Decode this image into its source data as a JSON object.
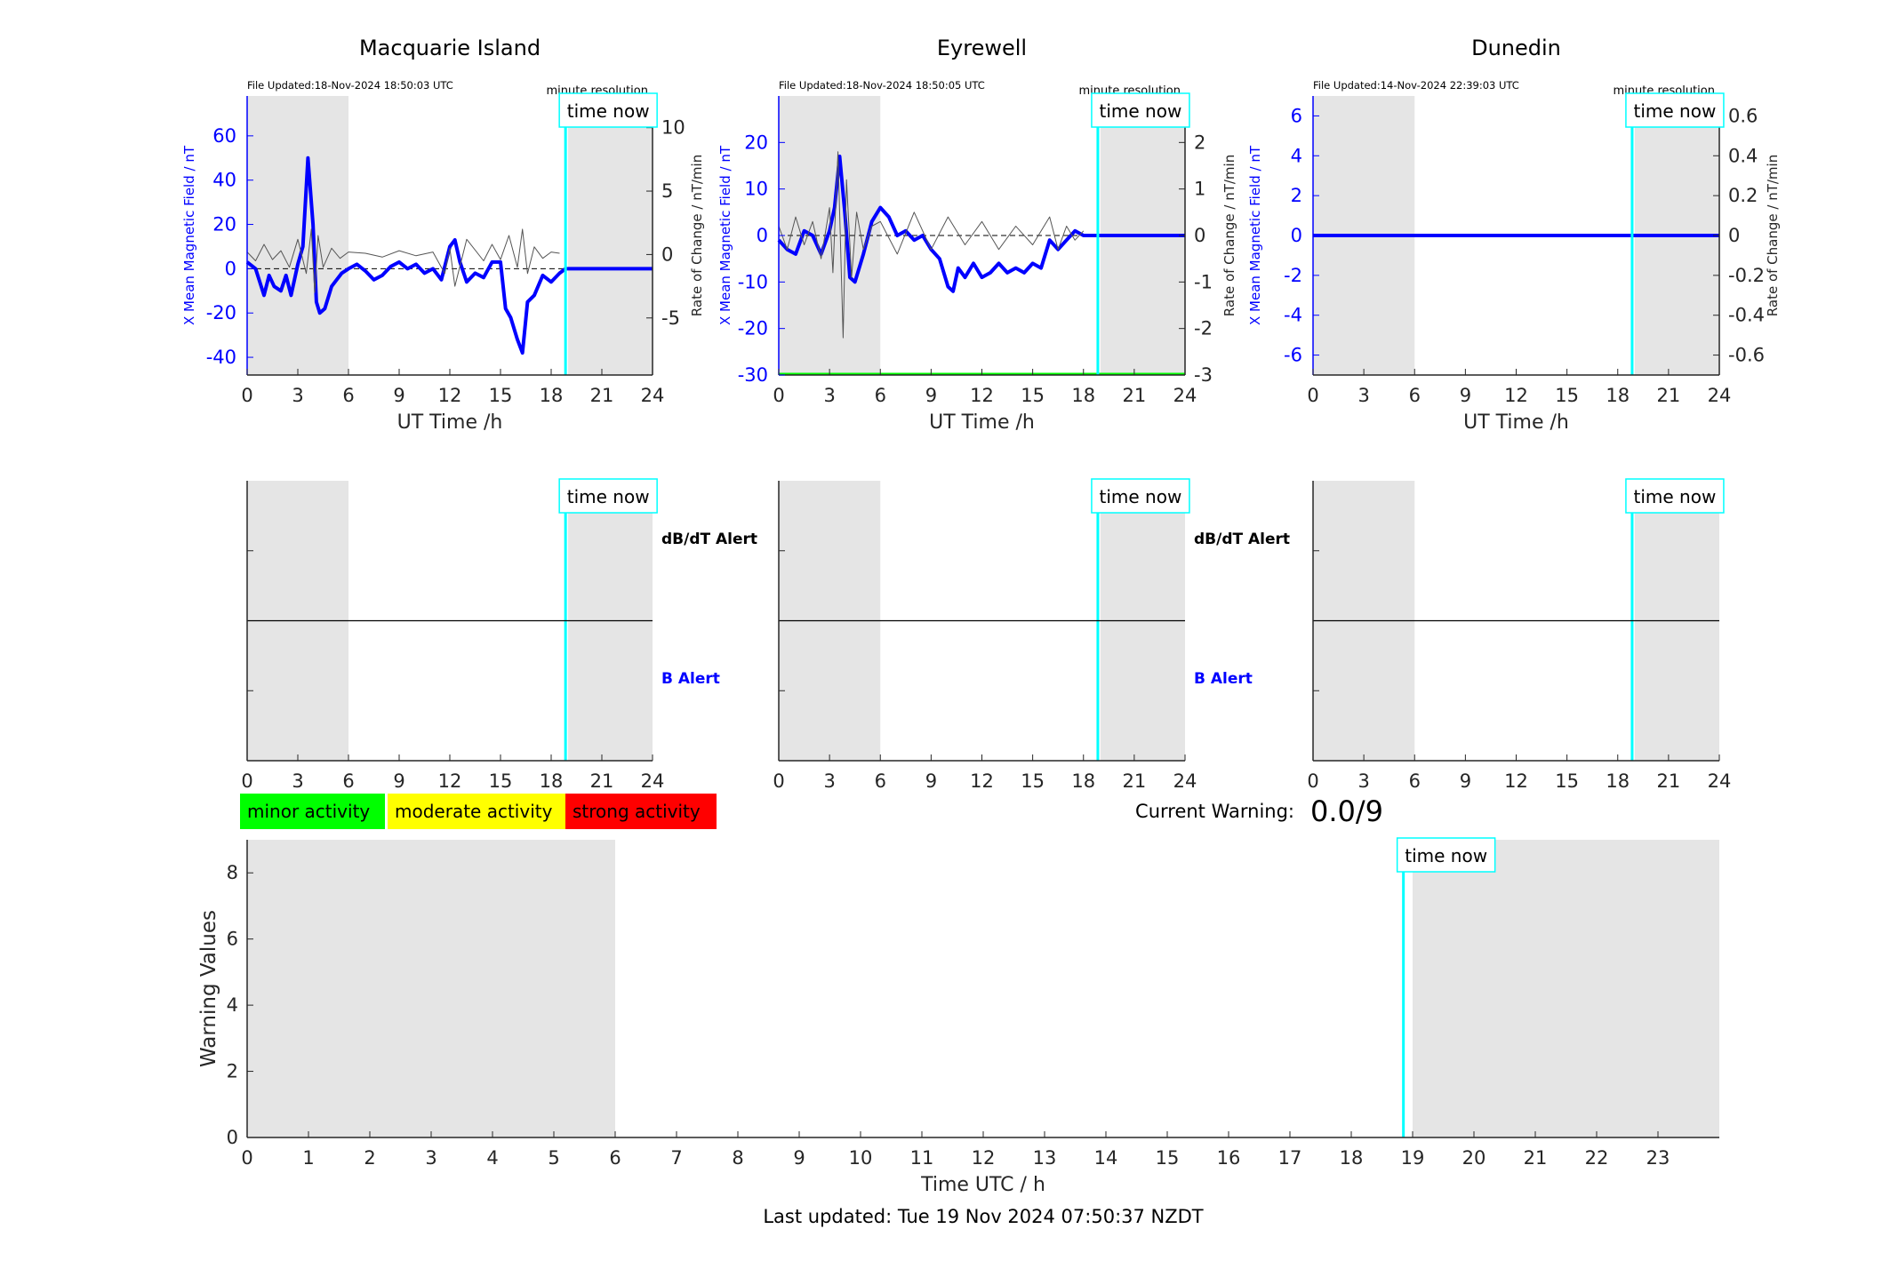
{
  "colors": {
    "x_series": "#0000ff",
    "rate_series": "#555555",
    "time_now": "#00ffff",
    "night_shade": "#e5e5e5",
    "minor": "#00ff00",
    "moderate": "#ffff00",
    "strong": "#ff0000",
    "axis": "#262626"
  },
  "common": {
    "time_now_label": "time now",
    "resolution_label": "minute resolution",
    "xlabel_top": "UT Time /h",
    "y_left_label": "X Mean Magnetic Field / nT",
    "y_right_label": "Rate of Change / nT/min",
    "dbdt_alert_label": "dB/dT Alert",
    "b_alert_label": "B Alert",
    "x_ticks": [
      0,
      3,
      6,
      9,
      12,
      15,
      18,
      21,
      24
    ],
    "time_now_h": 18.85,
    "night_start_h": 0,
    "night_end_h": 6,
    "day_shade_start_h": 19,
    "day_shade_end_h": 24
  },
  "legend": {
    "minor": "minor activity",
    "moderate": "moderate activity",
    "strong": "strong activity"
  },
  "warning": {
    "label": "Current Warning:",
    "value": "0.0/9"
  },
  "footer": {
    "last_updated": "Last updated: Tue 19 Nov 2024 07:50:37 NZDT"
  },
  "chart_data": [
    {
      "type": "line",
      "title": "Macquarie Island",
      "file_updated": "File Updated:18-Nov-2024 18:50:03 UTC",
      "xlim": [
        0,
        24
      ],
      "ylim_left": [
        -48,
        78
      ],
      "y_left_ticks": [
        -40,
        -20,
        0,
        20,
        40,
        60
      ],
      "ylim_right": [
        -9.5,
        12.5
      ],
      "y_right_ticks": [
        -5,
        0,
        5,
        10
      ],
      "right_tick_labels": [
        "-5",
        "0",
        "5",
        "10"
      ],
      "series": [
        {
          "name": "X Mean Magnetic Field / nT",
          "axis": "left",
          "x": [
            0,
            0.5,
            1,
            1.3,
            1.6,
            2,
            2.3,
            2.6,
            3,
            3.3,
            3.6,
            3.9,
            4.1,
            4.3,
            4.6,
            5,
            5.3,
            5.6,
            6,
            6.5,
            7,
            7.5,
            8,
            8.5,
            9,
            9.5,
            10,
            10.5,
            11,
            11.5,
            12,
            12.3,
            12.6,
            13,
            13.5,
            14,
            14.5,
            15,
            15.3,
            15.6,
            16,
            16.3,
            16.6,
            17,
            17.5,
            18,
            18.5,
            18.85,
            20,
            22,
            24
          ],
          "y": [
            3,
            0,
            -12,
            -3,
            -8,
            -10,
            -3,
            -12,
            2,
            10,
            50,
            20,
            -15,
            -20,
            -18,
            -8,
            -5,
            -2,
            0,
            2,
            -1,
            -5,
            -3,
            1,
            3,
            0,
            2,
            -2,
            0,
            -5,
            10,
            13,
            3,
            -6,
            -2,
            -4,
            3,
            3,
            -18,
            -22,
            -32,
            -38,
            -15,
            -12,
            -3,
            -6,
            -2,
            0,
            0,
            0,
            0
          ]
        },
        {
          "name": "Rate of Change / nT/min",
          "axis": "right",
          "x": [
            0,
            0.5,
            1,
            1.5,
            2,
            2.5,
            3,
            3.5,
            3.8,
            4,
            4.2,
            4.5,
            5,
            5.5,
            6,
            7,
            8,
            9,
            10,
            11,
            11.7,
            12,
            12.3,
            13,
            14,
            14.5,
            15,
            15.5,
            16,
            16.3,
            16.6,
            17,
            17.5,
            18,
            18.5
          ],
          "y": [
            0.2,
            -0.5,
            0.8,
            -0.4,
            0.3,
            -1.0,
            1.2,
            -1.5,
            2.0,
            -3.0,
            1.5,
            -1.0,
            0.5,
            -0.3,
            0.2,
            0.1,
            -0.2,
            0.3,
            -0.1,
            0.2,
            -1.5,
            0.5,
            -2.5,
            1.2,
            -0.5,
            0.8,
            -0.4,
            1.5,
            -1.0,
            2.0,
            -1.5,
            0.6,
            -0.3,
            0.2,
            0.1
          ]
        }
      ],
      "xlabel": "UT Time /h"
    },
    {
      "type": "line",
      "title": "Eyrewell",
      "file_updated": "File Updated:18-Nov-2024 18:50:05 UTC",
      "xlim": [
        0,
        24
      ],
      "ylim_left": [
        -30,
        30
      ],
      "y_left_ticks": [
        -30,
        -20,
        -10,
        0,
        10,
        20
      ],
      "ylim_right": [
        -3,
        3
      ],
      "y_right_ticks": [
        -3,
        -2,
        -1,
        0,
        1,
        2
      ],
      "right_tick_labels": [
        "-3",
        "-2",
        "-1",
        "0",
        "1",
        "2"
      ],
      "series": [
        {
          "name": "X Mean Magnetic Field / nT",
          "axis": "left",
          "x": [
            0,
            0.5,
            1,
            1.5,
            2,
            2.5,
            3,
            3.3,
            3.6,
            3.9,
            4.2,
            4.5,
            5,
            5.5,
            6,
            6.5,
            7,
            7.5,
            8,
            8.5,
            9,
            9.5,
            10,
            10.3,
            10.6,
            11,
            11.5,
            12,
            12.5,
            13,
            13.5,
            14,
            14.5,
            15,
            15.5,
            16,
            16.5,
            17,
            17.5,
            18,
            18.85,
            20,
            22,
            24
          ],
          "y": [
            -1,
            -3,
            -4,
            1,
            0,
            -4,
            1,
            6,
            17,
            5,
            -9,
            -10,
            -4,
            3,
            6,
            4,
            0,
            1,
            -1,
            0,
            -3,
            -5,
            -11,
            -12,
            -7,
            -9,
            -6,
            -9,
            -8,
            -6,
            -8,
            -7,
            -8,
            -6,
            -7,
            -1,
            -3,
            -1,
            1,
            0,
            0,
            0,
            0,
            0
          ]
        },
        {
          "name": "Rate of Change / nT/min",
          "axis": "right",
          "x": [
            0,
            0.5,
            1,
            1.5,
            2,
            2.5,
            3,
            3.2,
            3.5,
            3.8,
            4,
            4.3,
            4.6,
            5,
            5.5,
            6,
            7,
            8,
            9,
            10,
            11,
            12,
            13,
            14,
            15,
            16,
            16.5,
            17,
            17.5,
            18
          ],
          "y": [
            0.2,
            -0.3,
            0.4,
            -0.2,
            0.3,
            -0.5,
            0.6,
            -0.8,
            1.8,
            -2.2,
            1.2,
            -0.9,
            0.5,
            -0.3,
            0.2,
            0.3,
            -0.4,
            0.5,
            -0.3,
            0.4,
            -0.2,
            0.3,
            -0.3,
            0.2,
            -0.2,
            0.4,
            -0.3,
            0.2,
            -0.1,
            0.1
          ]
        }
      ],
      "xlabel": "UT Time /h"
    },
    {
      "type": "line",
      "title": "Dunedin",
      "file_updated": "File Updated:14-Nov-2024 22:39:03 UTC",
      "xlim": [
        0,
        24
      ],
      "ylim_left": [
        -7,
        7
      ],
      "y_left_ticks": [
        -6,
        -4,
        -2,
        0,
        2,
        4,
        6
      ],
      "ylim_right": [
        -0.7,
        0.7
      ],
      "y_right_ticks": [
        -0.6,
        -0.4,
        -0.2,
        0,
        0.2,
        0.4,
        0.6
      ],
      "right_tick_labels": [
        "-0.6",
        "-0.4",
        "-0.2",
        "0",
        "0.2",
        "0.4",
        "0.6"
      ],
      "series": [
        {
          "name": "X Mean Magnetic Field / nT",
          "axis": "left",
          "x": [
            0,
            24
          ],
          "y": [
            0,
            0
          ]
        }
      ],
      "xlabel": "UT Time /h"
    },
    {
      "type": "line",
      "title": "",
      "xlim": [
        0,
        24
      ],
      "x_ticks": [
        0,
        1,
        2,
        3,
        4,
        5,
        6,
        7,
        8,
        9,
        10,
        11,
        12,
        13,
        14,
        15,
        16,
        17,
        18,
        19,
        20,
        21,
        22,
        23
      ],
      "ylim": [
        0,
        9
      ],
      "y_ticks": [
        0,
        2,
        4,
        6,
        8
      ],
      "xlabel": "Time UTC / h",
      "ylabel": "Warning Values",
      "night_shade": [
        [
          0,
          6
        ],
        [
          19,
          24
        ]
      ],
      "time_now_h": 18.85
    }
  ]
}
